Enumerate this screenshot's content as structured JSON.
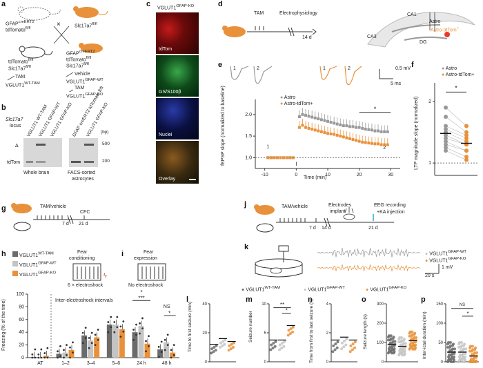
{
  "panels": {
    "a": "a",
    "b": "b",
    "c": "c",
    "d": "d",
    "e": "e",
    "f": "f",
    "g": "g",
    "h": "h",
    "i": "i",
    "j": "j",
    "k": "k",
    "l": "l",
    "m": "m",
    "n": "n",
    "o": "o",
    "p": "p"
  },
  "a": {
    "cross1": "GFAP",
    "cross1_sup": "creERT2",
    "cross2": "tdTomato",
    "cross2_sup": "fl/fl",
    "cross_x": "×",
    "slc": "Slc17a7",
    "slc_sup": "fl/fl",
    "left_g1": "tdTomato",
    "left_g1_sup": "fl/fl",
    "left_g2": "Slc17a7",
    "left_g2_sup": "fl/fl",
    "left_tam": "TAM",
    "left_out": "VGLUT1",
    "left_out_sup": "WT-TAM",
    "right_g1": "GFAP",
    "right_g1_sup": "creERT2",
    "right_g2": "tdTomato",
    "right_g2_sup": "fl/fl",
    "right_g3": "Slc17a7",
    "right_g3_sup": "fl/fl",
    "vehicle": "Vehicle",
    "vg_wt": "VGLUT1",
    "vg_wt_sup": "GFAP-WT",
    "tam2": "TAM",
    "vg_ko": "VGLUT1",
    "vg_ko_sup": "GFAP-KO"
  },
  "b": {
    "locus": "Slc17a7",
    "locus2": "locus",
    "delta": "Δ",
    "tdtom": "tdTom",
    "lanes": [
      "VGLUT1 WT-TAM",
      "VGLUT1 GFAP-WT",
      "VGLUT1 GFAP-KO",
      "GFAP creERT2 tdTomato fl/fl",
      "VGLUT1 GFAP-KO"
    ],
    "bp": "(bp)",
    "bp500": "500",
    "bp200": "200",
    "whole": "Whole brain",
    "facs1": "FACS-sorted",
    "facs2": "astrocytes"
  },
  "c": {
    "title": "VGLUT1",
    "title_sup": "GFAP-KO",
    "labels": [
      "tdTom",
      "GS/S100β",
      "Nuclei",
      "Overlay"
    ],
    "colors": [
      "#6a0a0a",
      "#0e4a1a",
      "#0a1040",
      "#3a2a10"
    ]
  },
  "d": {
    "tam": "TAM",
    "ephys": "Electrophysiology",
    "days": "14 d",
    "ca1": "CA1",
    "ca3": "CA3",
    "dg": "DG",
    "astro": "Astro",
    "astro_td": "Astro-tdTom",
    "astro_td_sup": "+"
  },
  "e": {
    "trace_labels": [
      "1",
      "2",
      "1",
      "2"
    ],
    "scale_v": "0.5 mV",
    "scale_t": "5 ms",
    "ylabel": "fEPSP slope (normalized to baseline)",
    "xlabel": "Time (min)",
    "legend": [
      "Astro",
      "Astro-tdTom+"
    ],
    "star": "*",
    "colors": [
      "#999999",
      "#e8913a"
    ],
    "chart_data": {
      "type": "line",
      "xlabel": "Time (min)",
      "ylabel": "fEPSP slope (normalized to baseline)",
      "x_ticks": [
        -10,
        0,
        10,
        20,
        30
      ],
      "y_ticks": [
        1.0,
        1.5,
        2.0
      ],
      "ylim": [
        0.75,
        2.35
      ],
      "xlim": [
        -13,
        33
      ],
      "series": [
        {
          "name": "Astro",
          "x": [
            -9,
            -8,
            -7,
            -6,
            -5,
            -4,
            -3,
            -2,
            -1,
            1,
            2,
            3,
            4,
            5,
            6,
            7,
            8,
            9,
            10,
            11,
            12,
            13,
            14,
            15,
            16,
            17,
            18,
            19,
            20,
            21,
            22,
            23,
            24,
            25,
            26,
            27,
            28,
            29
          ],
          "y": [
            1.0,
            1.0,
            1.0,
            1.0,
            1.0,
            1.0,
            1.0,
            1.0,
            1.0,
            1.95,
            2.0,
            1.98,
            1.96,
            1.94,
            1.92,
            1.9,
            1.88,
            1.86,
            1.84,
            1.82,
            1.8,
            1.78,
            1.76,
            1.74,
            1.74,
            1.72,
            1.72,
            1.7,
            1.7,
            1.68,
            1.66,
            1.65,
            1.64,
            1.62,
            1.62,
            1.6,
            1.6,
            1.6
          ]
        },
        {
          "name": "Astro-tdTom+",
          "x": [
            -9,
            -8,
            -7,
            -6,
            -5,
            -4,
            -3,
            -2,
            -1,
            1,
            2,
            3,
            4,
            5,
            6,
            7,
            8,
            9,
            10,
            11,
            12,
            13,
            14,
            15,
            16,
            17,
            18,
            19,
            20,
            21,
            22,
            23,
            24,
            25,
            26,
            27,
            28,
            29
          ],
          "y": [
            1.0,
            1.0,
            1.0,
            1.0,
            1.0,
            1.0,
            1.0,
            1.0,
            1.0,
            1.7,
            1.75,
            1.7,
            1.68,
            1.66,
            1.64,
            1.62,
            1.6,
            1.58,
            1.56,
            1.55,
            1.54,
            1.52,
            1.5,
            1.48,
            1.46,
            1.44,
            1.42,
            1.4,
            1.38,
            1.36,
            1.35,
            1.34,
            1.33,
            1.32,
            1.32,
            1.3,
            1.3,
            1.3
          ]
        }
      ]
    }
  },
  "f": {
    "ylabel": "LTP magnitude slope (normalized)",
    "legend": [
      "Astro",
      "Astro-tdTom+"
    ],
    "star": "*",
    "y_ticks": [
      1,
      2
    ],
    "chart_data": {
      "type": "scatter",
      "series": [
        {
          "name": "Astro",
          "mean": 1.48
        },
        {
          "name": "Astro-tdTom+",
          "mean": 1.32
        }
      ],
      "ylim": [
        0.8,
        2.3
      ]
    }
  },
  "g": {
    "tam": "TAM/vehicle",
    "cfc": "CFC",
    "d7": "7 d",
    "d21": "21 d"
  },
  "h": {
    "legend": [
      "VGLUT1",
      "VGLUT1",
      "VGLUT1"
    ],
    "legend_sup": [
      "WT-TAM",
      "GFAP-WT",
      "GFAP-KO"
    ],
    "legend_colors": [
      "#6b6b6b",
      "#c4c4c4",
      "#e8913a"
    ],
    "fear": "Fear",
    "cond": "conditioning",
    "shocks": "6 × electroshock",
    "ylabel": "Freezing (% of the time)",
    "intervals": "Inter-electroshock intervals",
    "ns": "NS",
    "star": "*",
    "stars3": "***",
    "chart_data": {
      "type": "bar",
      "categories": [
        "AT",
        "1–2",
        "3–4",
        "5–6",
        "24 h",
        "48 h"
      ],
      "y_ticks": [
        0,
        20,
        40,
        60,
        80,
        100
      ],
      "ylim": [
        0,
        100
      ],
      "series": [
        {
          "name": "VGLUT1 WT-TAM",
          "values": [
            1,
            6,
            35,
            52,
            40,
            13
          ]
        },
        {
          "name": "VGLUT1 GFAP-WT",
          "values": [
            1,
            8,
            27,
            52,
            50,
            24
          ]
        },
        {
          "name": "VGLUT1 GFAP-KO",
          "values": [
            3,
            12,
            32,
            45,
            22,
            8
          ]
        }
      ]
    }
  },
  "i": {
    "fear": "Fear",
    "expr": "expression",
    "noshock": "No electroshock"
  },
  "j": {
    "tam": "TAM/vehicle",
    "electrodes": "Electrodes",
    "implant": "implant",
    "eeg": "EEG recording",
    "ka": "+KA injection",
    "d7": "7 d",
    "d14": "14 d",
    "d21": "21 d"
  },
  "k": {
    "legend": [
      "VGLUT1",
      "VGLUT1"
    ],
    "legend_sup": [
      "GFAP-WT",
      "GFAP-KO"
    ],
    "scale_v": "1 mV",
    "scale_t": "20 s"
  },
  "lp_legend": {
    "items": [
      "VGLUT1",
      "VGLUT1",
      "VGLUT1"
    ],
    "sups": [
      "WT-TAM",
      "GFAP-WT",
      "GFAP-KO"
    ]
  },
  "l": {
    "ylabel": "Time to first seizure (min)",
    "ticks": [
      "0",
      "20",
      "40"
    ],
    "chart_data": {
      "type": "scatter",
      "means": [
        12,
        16,
        14
      ],
      "ylim": [
        0,
        40
      ]
    }
  },
  "m": {
    "ylabel": "Seizure number",
    "ticks": [
      "0",
      "5",
      "10"
    ],
    "stars": "**",
    "star": "*",
    "chart_data": {
      "type": "scatter",
      "means": [
        4.5,
        4.5,
        7.5
      ],
      "ylim": [
        0,
        12
      ]
    }
  },
  "n": {
    "ylabel": "Time from first to last seizure (h)",
    "ticks": [
      "0",
      "2",
      "4"
    ],
    "chart_data": {
      "type": "scatter",
      "means": [
        1.5,
        1.7,
        1.5
      ],
      "ylim": [
        0,
        4
      ]
    }
  },
  "o": {
    "ylabel": "Seizure length (s)",
    "ticks": [
      "0",
      "100",
      "200",
      "300"
    ],
    "chart_data": {
      "type": "scatter",
      "means": [
        90,
        80,
        110
      ],
      "ylim": [
        0,
        300
      ]
    }
  },
  "p": {
    "ylabel": "Inter-ictal duration (min)",
    "ticks": [
      "0",
      "50",
      "100",
      "150"
    ],
    "ns": "NS",
    "star": "*",
    "chart_data": {
      "type": "scatter",
      "means": [
        25,
        25,
        15
      ],
      "ylim": [
        0,
        150
      ]
    }
  }
}
